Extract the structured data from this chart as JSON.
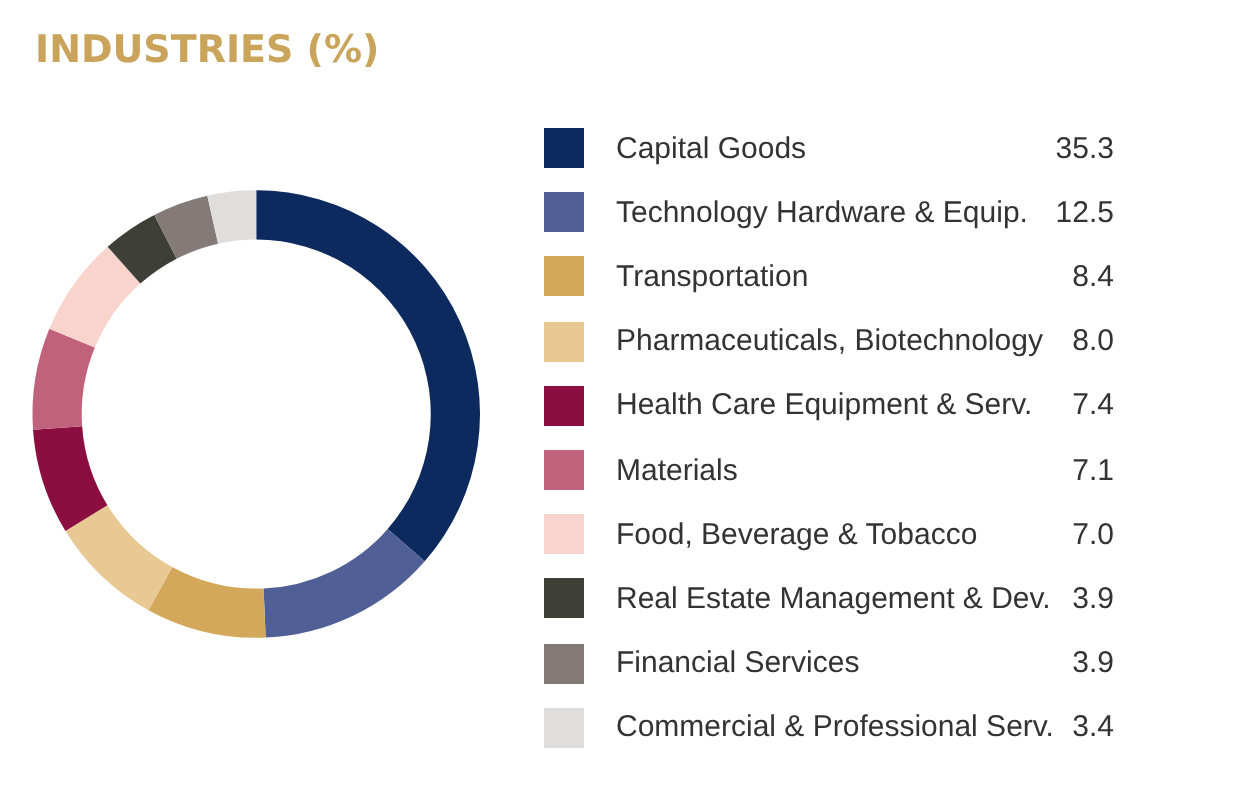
{
  "chart_data": {
    "type": "donut",
    "title": "INDUSTRIES (%)",
    "categories": [
      "Capital Goods",
      "Technology Hardware & Equip.",
      "Transportation",
      "Pharmaceuticals, Biotechnology",
      "Health Care Equipment & Serv.",
      "Materials",
      "Food, Beverage & Tobacco",
      "Real Estate Management & Dev.",
      "Financial Services",
      "Commercial & Professional Serv."
    ],
    "values": [
      35.3,
      12.5,
      8.4,
      8.0,
      7.4,
      7.1,
      7.0,
      3.9,
      3.9,
      3.4
    ],
    "colors": [
      "#0d2a5e",
      "#505f96",
      "#d4a85a",
      "#e8c994",
      "#8c0d40",
      "#c0627c",
      "#f8d4cc",
      "#3e3f36",
      "#847b78",
      "#e0dedd"
    ],
    "value_labels": [
      "35.3",
      "12.5",
      "8.4",
      "8.0",
      "7.4",
      "7.1",
      "7.0",
      "3.9",
      "3.9",
      "3.4"
    ],
    "legend": "right"
  }
}
